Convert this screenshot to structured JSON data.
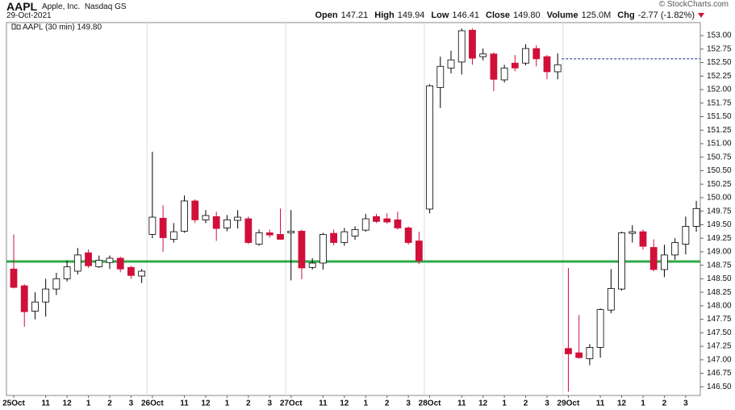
{
  "header": {
    "symbol": "AAPL",
    "company": "Apple, Inc.",
    "exchange": "Nasdaq GS",
    "date": "29-Oct-2021",
    "stats": [
      {
        "label": "Open",
        "value": "147.21"
      },
      {
        "label": "High",
        "value": "149.94"
      },
      {
        "label": "Low",
        "value": "146.41"
      },
      {
        "label": "Close",
        "value": "149.80"
      },
      {
        "label": "Volume",
        "value": "125.0M"
      },
      {
        "label": "Chg",
        "value": "-2.77 (-1.82%)"
      }
    ],
    "credit": "© StockCharts.com"
  },
  "chart_data": {
    "type": "candlestick",
    "legend": "AAPL (30 min) 149.80",
    "categories": [
      "25Oct",
      null,
      null,
      "11",
      null,
      "12",
      null,
      "1",
      null,
      "2",
      null,
      "3",
      null,
      "26Oct",
      null,
      null,
      "11",
      null,
      "12",
      null,
      "1",
      null,
      "2",
      null,
      "3",
      null,
      "27Oct",
      null,
      null,
      "11",
      null,
      "12",
      null,
      "1",
      null,
      "2",
      null,
      "3",
      null,
      "28Oct",
      null,
      null,
      "11",
      null,
      "12",
      null,
      "1",
      null,
      "2",
      null,
      "3",
      null,
      "29Oct",
      null,
      null,
      "11",
      null,
      "12",
      null,
      "1",
      null,
      "2",
      null,
      "3",
      null
    ],
    "open": [
      148.68,
      148.37,
      147.9,
      148.07,
      148.31,
      148.5,
      148.64,
      148.98,
      148.72,
      148.8,
      148.88,
      148.71,
      148.55,
      149.32,
      149.62,
      149.23,
      149.38,
      149.94,
      149.59,
      149.65,
      149.44,
      149.58,
      149.61,
      149.14,
      149.35,
      149.32,
      149.35,
      149.38,
      148.71,
      148.79,
      149.34,
      149.17,
      149.29,
      149.4,
      149.65,
      149.61,
      149.59,
      149.44,
      149.2,
      149.79,
      152.04,
      152.4,
      152.51,
      153.1,
      152.61,
      152.66,
      152.18,
      152.49,
      152.49,
      152.76,
      152.61,
      152.33,
      147.21,
      147.13,
      147.02,
      147.23,
      147.92,
      148.31,
      149.34,
      149.37,
      149.08,
      148.67,
      148.94,
      149.14,
      149.47
    ],
    "high": [
      149.32,
      148.4,
      148.25,
      148.5,
      148.61,
      148.84,
      149.07,
      149.04,
      148.93,
      148.93,
      148.91,
      148.74,
      148.68,
      150.85,
      149.86,
      149.53,
      150.04,
      149.97,
      149.77,
      149.74,
      149.68,
      149.77,
      149.65,
      149.41,
      149.41,
      149.8,
      149.77,
      149.41,
      148.88,
      149.35,
      149.41,
      149.44,
      149.47,
      149.7,
      149.7,
      149.71,
      149.74,
      149.47,
      149.37,
      152.1,
      152.61,
      152.72,
      153.13,
      153.13,
      152.76,
      152.69,
      152.46,
      152.64,
      152.84,
      152.82,
      152.64,
      152.67,
      148.7,
      147.83,
      147.29,
      147.95,
      148.68,
      149.37,
      149.49,
      149.41,
      149.23,
      149.13,
      149.25,
      149.65,
      149.94
    ],
    "low": [
      148.32,
      147.61,
      147.75,
      147.8,
      148.2,
      148.45,
      148.58,
      148.7,
      148.7,
      148.68,
      148.62,
      148.5,
      148.42,
      149.25,
      149.0,
      149.17,
      149.35,
      149.53,
      149.53,
      149.2,
      149.38,
      149.43,
      149.14,
      149.11,
      149.26,
      149.22,
      148.47,
      148.49,
      148.67,
      148.67,
      149.12,
      149.11,
      149.22,
      149.37,
      149.53,
      149.52,
      149.41,
      149.13,
      148.77,
      149.71,
      151.66,
      152.3,
      152.28,
      152.46,
      152.54,
      151.97,
      152.13,
      152.34,
      152.45,
      152.43,
      152.19,
      152.19,
      146.41,
      147.02,
      146.9,
      147.04,
      147.86,
      148.28,
      149.17,
      149.04,
      148.64,
      148.53,
      148.85,
      148.95,
      149.37
    ],
    "close": [
      148.34,
      147.89,
      148.07,
      148.31,
      148.5,
      148.72,
      148.94,
      148.74,
      148.84,
      148.88,
      148.68,
      148.56,
      148.64,
      149.64,
      149.26,
      149.37,
      149.94,
      149.59,
      149.67,
      149.43,
      149.59,
      149.64,
      149.17,
      149.35,
      149.31,
      149.23,
      149.38,
      148.7,
      148.79,
      149.32,
      149.17,
      149.37,
      149.41,
      149.61,
      149.56,
      149.55,
      149.44,
      149.17,
      148.83,
      152.07,
      152.43,
      152.55,
      153.09,
      152.58,
      152.66,
      152.19,
      152.4,
      152.4,
      152.76,
      152.57,
      152.33,
      152.46,
      147.11,
      147.04,
      147.23,
      147.93,
      148.32,
      149.35,
      149.37,
      149.1,
      148.67,
      148.94,
      149.17,
      149.47,
      149.8
    ],
    "up_color": "#ffffff",
    "down_color": "#d0103a",
    "ylim": [
      146.34,
      153.24
    ],
    "yticks": [
      {
        "value": 146.5,
        "label": "146.50"
      },
      {
        "value": 146.75,
        "label": "146.75"
      },
      {
        "value": 147,
        "label": "147.00"
      },
      {
        "value": 147.25,
        "label": "147.25"
      },
      {
        "value": 147.5,
        "label": "147.50"
      },
      {
        "value": 147.75,
        "label": "147.75"
      },
      {
        "value": 148,
        "label": "148.00"
      },
      {
        "value": 148.25,
        "label": "148.25"
      },
      {
        "value": 148.5,
        "label": "148.50"
      },
      {
        "value": 148.75,
        "label": "148.75"
      },
      {
        "value": 149,
        "label": "149.00"
      },
      {
        "value": 149.25,
        "label": "149.25"
      },
      {
        "value": 149.5,
        "label": "149.50"
      },
      {
        "value": 149.75,
        "label": "149.75"
      },
      {
        "value": 150,
        "label": "150.00"
      },
      {
        "value": 150.25,
        "label": "150.25"
      },
      {
        "value": 150.5,
        "label": "150.50"
      },
      {
        "value": 150.75,
        "label": "150.75"
      },
      {
        "value": 151,
        "label": "151.00"
      },
      {
        "value": 151.25,
        "label": "151.25"
      },
      {
        "value": 151.5,
        "label": "151.50"
      },
      {
        "value": 151.75,
        "label": "151.75"
      },
      {
        "value": 152,
        "label": "152.00"
      },
      {
        "value": 152.25,
        "label": "152.25"
      },
      {
        "value": 152.5,
        "label": "152.50"
      },
      {
        "value": 152.75,
        "label": "152.75"
      },
      {
        "value": 153,
        "label": "153.00"
      }
    ],
    "reference_lines": [
      {
        "value": 148.82,
        "color": "#2eaa48",
        "style": "solid"
      },
      {
        "value": 152.57,
        "color": "#1a2a9a",
        "style": "dotted",
        "x_start": 51
      }
    ]
  }
}
